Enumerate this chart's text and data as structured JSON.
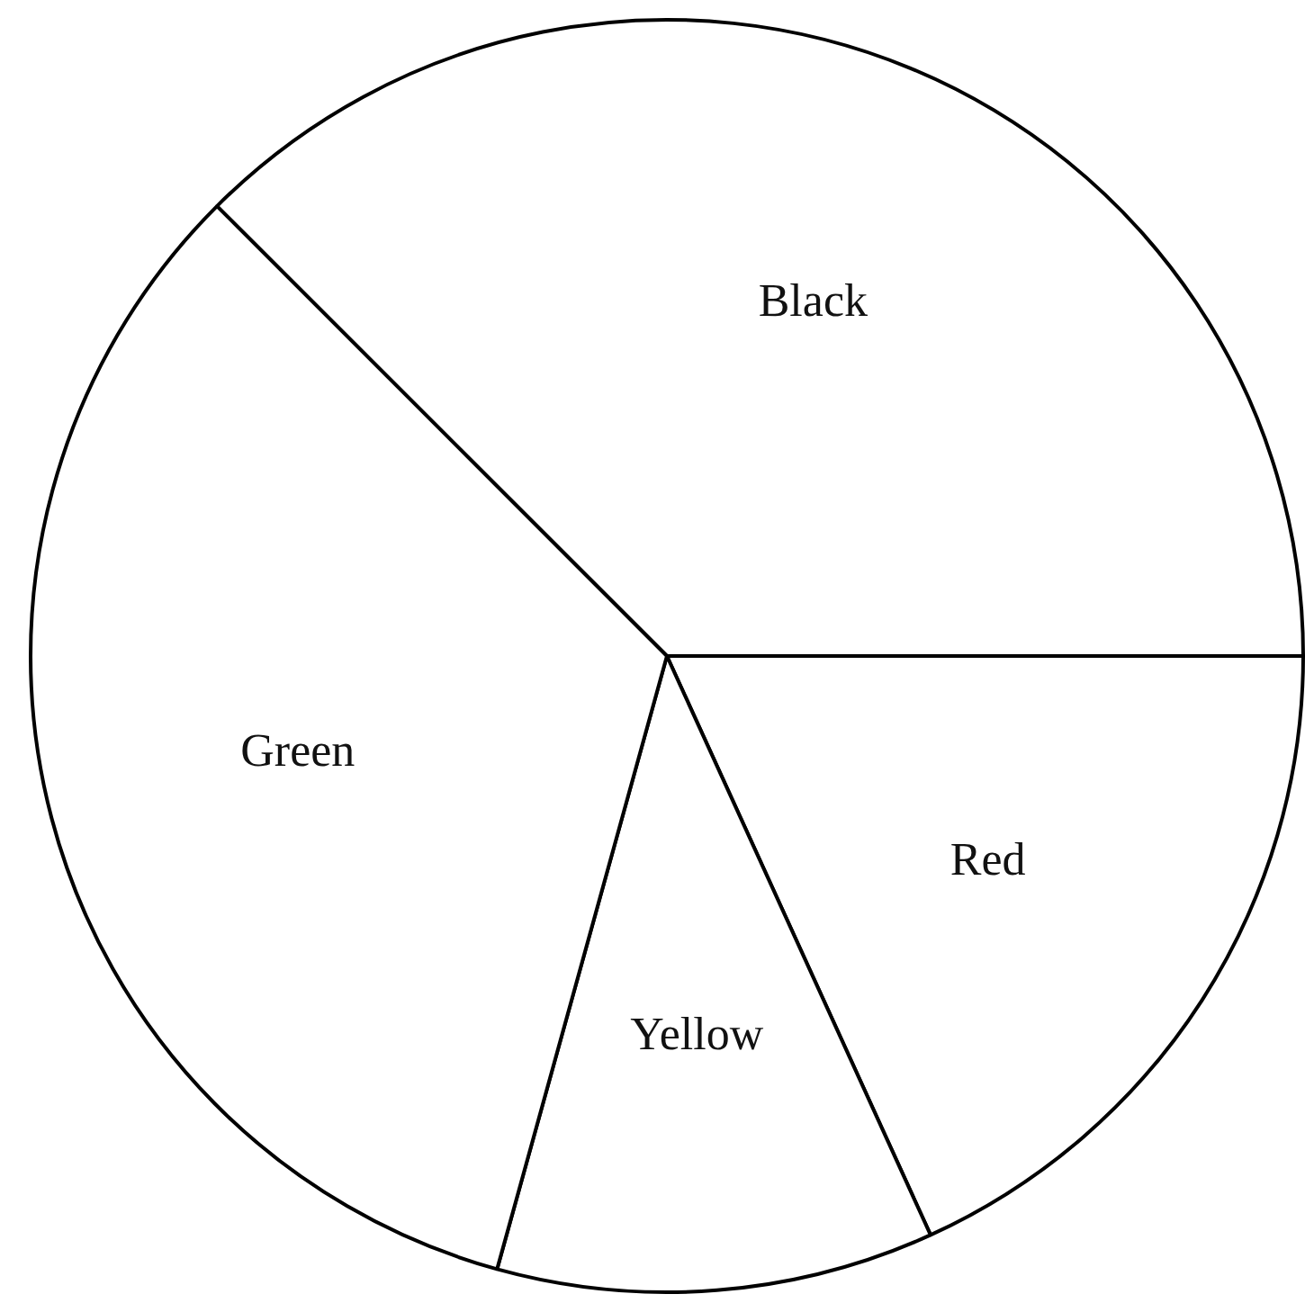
{
  "chart_data": {
    "type": "pie",
    "categories": [
      "Black",
      "Red",
      "Yellow",
      "Green"
    ],
    "values": [
      37.5,
      18.2,
      11.1,
      33.2
    ],
    "colors": [
      "#ffffff",
      "#ffffff",
      "#ffffff",
      "#ffffff"
    ],
    "legend": false
  }
}
